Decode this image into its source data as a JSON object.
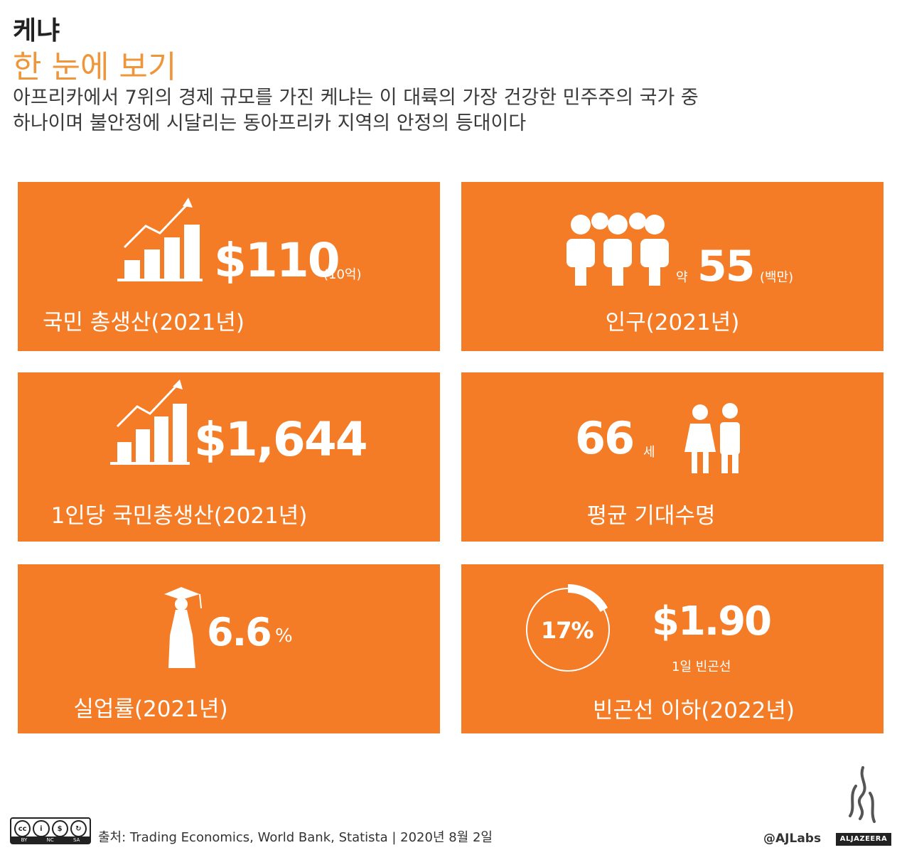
{
  "header": {
    "country": "케냐",
    "subtitle": "한 눈에 보기",
    "description_line1": "아프리카에서 7위의 경제 규모를 가진 케냐는 이 대륙의 가장 건강한 민주주의 국가 중",
    "description_line2": "하나이며 불안정에 시달리는 동아프리카 지역의 안정의 등대이다"
  },
  "colors": {
    "card": "#f47c27",
    "subtitle": "#f0963a"
  },
  "cards": [
    {
      "value": "$110",
      "unit": "(10억)",
      "label": "국민 총생산(2021년)",
      "icon": "growth-chart-icon"
    },
    {
      "prefix": "약",
      "value": "55",
      "unit": "(백만)",
      "label": "인구(2021년)",
      "icon": "people-icon"
    },
    {
      "value": "$1,644",
      "label": "1인당 국민총생산(2021년)",
      "icon": "growth-chart-icon"
    },
    {
      "value": "66",
      "unit": "세",
      "label": "평균 기대수명",
      "icon": "man-woman-icon"
    },
    {
      "value": "6.6",
      "unit": "%",
      "label": "실업률(2021년)",
      "icon": "graduate-icon"
    },
    {
      "ring_value": "17%",
      "value": "$1.90",
      "unit": "1일 빈곤선",
      "label": "빈곤선 이하(2022년)",
      "icon": "percentage-ring-icon",
      "ring_fraction": 0.17
    }
  ],
  "footer": {
    "source": "출처: Trading Economics, World Bank, Statista | 2020년 8월 2일",
    "cc_labels": [
      "cc",
      "BY",
      "NC",
      "SA"
    ],
    "credit": "@AJLabs",
    "brand": "ALJAZEERA"
  }
}
